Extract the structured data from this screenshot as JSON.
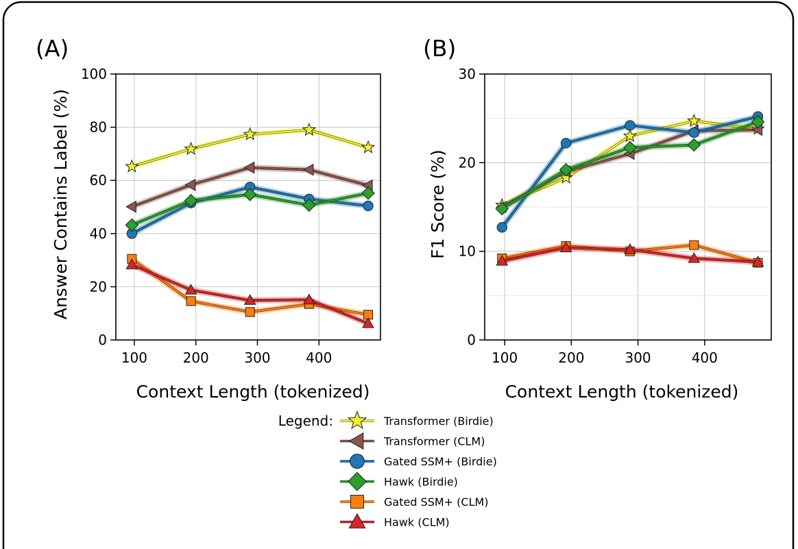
{
  "legend": {
    "title": "Legend:",
    "entries": [
      {
        "key": "tb",
        "label": "Transformer (Birdie)"
      },
      {
        "key": "tc",
        "label": "Transformer (CLM)"
      },
      {
        "key": "gb",
        "label": "Gated SSM+ (Birdie)"
      },
      {
        "key": "hb",
        "label": "Hawk (Birdie)"
      },
      {
        "key": "gc",
        "label": "Gated SSM+ (CLM)"
      },
      {
        "key": "hc",
        "label": "Hawk (CLM)"
      }
    ]
  },
  "styles": {
    "tb": {
      "color": "#f2f230",
      "marker": "star"
    },
    "tc": {
      "color": "#8c564b",
      "marker": "triangle-left"
    },
    "gb": {
      "color": "#1f77b4",
      "marker": "circle"
    },
    "hb": {
      "color": "#2ca02c",
      "marker": "diamond"
    },
    "gc": {
      "color": "#ff7f0e",
      "marker": "square"
    },
    "hc": {
      "color": "#d62728",
      "marker": "triangle-up"
    }
  },
  "chart_data": [
    {
      "type": "line",
      "panel_label": "(A)",
      "xlabel": "Context Length (tokenized)",
      "ylabel": "Answer Contains Label (%)",
      "xlim": [
        70,
        500
      ],
      "ylim": [
        0,
        100
      ],
      "xticks": [
        "100",
        "200",
        "300",
        "400"
      ],
      "yticks": [
        "0",
        "20",
        "40",
        "60",
        "80",
        "100"
      ],
      "grid": true,
      "x": [
        96,
        192,
        288,
        384,
        480
      ],
      "series": [
        {
          "key": "tb",
          "name": "Transformer (Birdie)",
          "values": [
            65.2,
            71.8,
            77.3,
            79.0,
            72.4
          ]
        },
        {
          "key": "tc",
          "name": "Transformer (CLM)",
          "values": [
            50.1,
            58.3,
            64.8,
            64.0,
            58.1
          ]
        },
        {
          "key": "gb",
          "name": "Gated SSM+ (Birdie)",
          "values": [
            40.0,
            51.5,
            57.5,
            53.0,
            50.4
          ]
        },
        {
          "key": "hb",
          "name": "Hawk (Birdie)",
          "values": [
            43.2,
            52.4,
            54.7,
            50.7,
            55.2
          ]
        },
        {
          "key": "gc",
          "name": "Gated SSM+ (CLM)",
          "values": [
            30.5,
            14.6,
            10.5,
            13.5,
            9.5
          ]
        },
        {
          "key": "hc",
          "name": "Hawk (CLM)",
          "values": [
            28.3,
            18.8,
            14.9,
            15.1,
            6.2
          ]
        }
      ]
    },
    {
      "type": "line",
      "panel_label": "(B)",
      "xlabel": "Context Length (tokenized)",
      "ylabel": "F1 Score (%)",
      "xlim": [
        70,
        500
      ],
      "ylim": [
        0,
        30
      ],
      "xticks": [
        "100",
        "200",
        "300",
        "400"
      ],
      "yticks": [
        "0",
        "10",
        "20",
        "30"
      ],
      "grid": true,
      "x": [
        96,
        192,
        288,
        384,
        480
      ],
      "series": [
        {
          "key": "tb",
          "name": "Transformer (Birdie)",
          "values": [
            15.2,
            18.3,
            23.0,
            24.7,
            23.8
          ]
        },
        {
          "key": "tc",
          "name": "Transformer (CLM)",
          "values": [
            15.0,
            19.0,
            21.0,
            23.6,
            23.7
          ]
        },
        {
          "key": "gb",
          "name": "Gated SSM+ (Birdie)",
          "values": [
            12.7,
            22.2,
            24.2,
            23.4,
            25.2
          ]
        },
        {
          "key": "hb",
          "name": "Hawk (Birdie)",
          "values": [
            14.8,
            19.2,
            21.7,
            22.0,
            24.6
          ]
        },
        {
          "key": "gc",
          "name": "Gated SSM+ (CLM)",
          "values": [
            9.2,
            10.6,
            10.0,
            10.7,
            8.7
          ]
        },
        {
          "key": "hc",
          "name": "Hawk (CLM)",
          "values": [
            8.9,
            10.4,
            10.2,
            9.2,
            8.8
          ]
        }
      ]
    }
  ]
}
